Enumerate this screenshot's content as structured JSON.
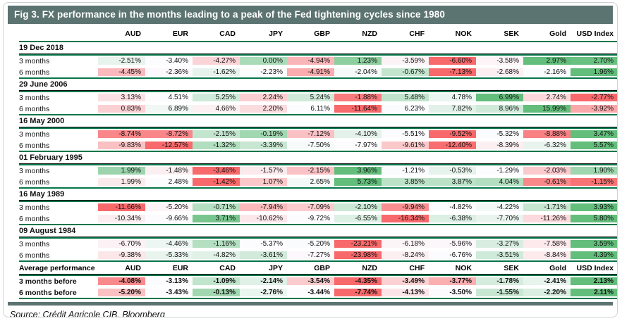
{
  "header": {
    "title": "Fig 3. FX performance in the months leading to a peak of the Fed tightening cycles since 1980"
  },
  "footer": {
    "source": "Source: Crédit Agricole CIB, Bloomberg"
  },
  "chart_data": {
    "type": "heatmap",
    "title": "Fig 3. FX performance in the months leading to a peak of the Fed tightening cycles since 1980",
    "value_format": "percent_2dp",
    "columns": [
      "AUD",
      "EUR",
      "CAD",
      "JPY",
      "GBP",
      "NZD",
      "CHF",
      "NOK",
      "SEK",
      "Gold",
      "USD Index"
    ],
    "sections": [
      {
        "date": "19 Dec 2018",
        "rows": [
          {
            "label": "3 months",
            "values": [
              -2.51,
              -3.4,
              -4.27,
              0.0,
              -4.94,
              1.23,
              -3.59,
              -6.6,
              -3.58,
              2.97,
              2.7
            ]
          },
          {
            "label": "6 months",
            "values": [
              -4.45,
              -2.36,
              -1.62,
              -2.23,
              -4.91,
              -2.04,
              -0.67,
              -7.13,
              -2.68,
              -2.16,
              1.96
            ]
          }
        ]
      },
      {
        "date": "29 June 2006",
        "rows": [
          {
            "label": "3 months",
            "values": [
              3.13,
              4.51,
              5.25,
              2.24,
              5.24,
              -1.88,
              5.48,
              4.78,
              6.99,
              2.74,
              -2.77
            ]
          },
          {
            "label": "6 months",
            "values": [
              0.83,
              6.89,
              4.66,
              2.2,
              6.11,
              -11.64,
              6.23,
              7.82,
              8.96,
              15.99,
              -3.92
            ]
          }
        ]
      },
      {
        "date": "16 May 2000",
        "rows": [
          {
            "label": "3 months",
            "values": [
              -8.74,
              -8.72,
              -2.15,
              -0.19,
              -7.12,
              -4.1,
              -5.51,
              -9.52,
              -5.32,
              -8.88,
              3.47
            ]
          },
          {
            "label": "6 months",
            "values": [
              -9.83,
              -12.57,
              -1.32,
              -3.39,
              -7.5,
              -7.97,
              -9.61,
              -12.4,
              -8.39,
              -6.32,
              5.57
            ]
          }
        ]
      },
      {
        "date": "01 February 1995",
        "rows": [
          {
            "label": "3 months",
            "values": [
              1.99,
              -1.48,
              -3.46,
              -1.57,
              -2.15,
              3.96,
              -1.21,
              -0.53,
              -1.29,
              -2.03,
              1.9
            ]
          },
          {
            "label": "6 months",
            "values": [
              1.99,
              2.48,
              -1.42,
              1.07,
              2.65,
              5.73,
              3.85,
              3.87,
              4.04,
              -0.61,
              -1.15
            ]
          }
        ]
      },
      {
        "date": "16 May 1989",
        "rows": [
          {
            "label": "3 months",
            "values": [
              -11.66,
              -5.2,
              -0.71,
              -7.94,
              -7.09,
              -2.1,
              -9.94,
              -4.82,
              -4.22,
              -1.71,
              3.93
            ]
          },
          {
            "label": "6 months",
            "values": [
              -10.34,
              -9.66,
              3.71,
              -10.62,
              -9.72,
              -6.55,
              -16.34,
              -6.38,
              -7.7,
              -11.26,
              5.8
            ]
          }
        ]
      },
      {
        "date": "09 August 1984",
        "rows": [
          {
            "label": "3 months",
            "values": [
              -6.7,
              -4.46,
              -1.16,
              -5.37,
              -5.2,
              -23.21,
              -6.18,
              -5.96,
              -3.27,
              -7.58,
              3.59
            ]
          },
          {
            "label": "6 months",
            "values": [
              -9.38,
              -5.33,
              -4.82,
              -3.61,
              -7.27,
              -23.98,
              -8.24,
              -6.76,
              -3.51,
              -8.84,
              4.39
            ]
          }
        ]
      }
    ],
    "average": {
      "label": "Average performance",
      "rows": [
        {
          "label": "3 months before",
          "values": [
            -4.08,
            -3.13,
            -1.09,
            -2.14,
            -3.54,
            -4.35,
            -3.49,
            -3.77,
            -1.78,
            -2.41,
            2.13
          ]
        },
        {
          "label": "6 months before",
          "values": [
            -5.2,
            -3.43,
            -0.13,
            -2.76,
            -3.44,
            -7.74,
            -4.13,
            -3.5,
            -1.55,
            -2.2,
            2.11
          ]
        }
      ]
    },
    "color_scale": {
      "min_color": "#F8696B",
      "mid_color": "#FCFCFF",
      "max_color": "#63BE7B",
      "midpoint": "row 50th percentile",
      "applied": "per row"
    },
    "layout": {
      "accent_green_line": "#067549",
      "title_bar_color": "#5C7471",
      "date_underline_color": "#141414"
    }
  }
}
